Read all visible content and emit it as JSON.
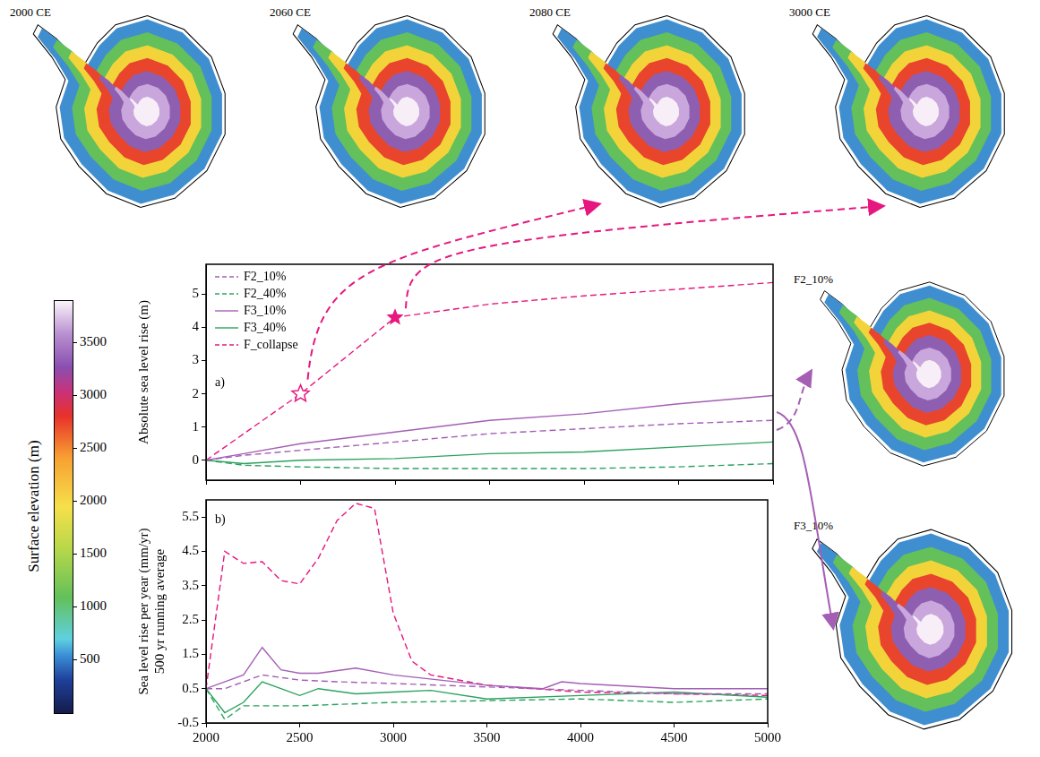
{
  "maps": [
    {
      "label": "2000 CE"
    },
    {
      "label": "2060 CE"
    },
    {
      "label": "2080 CE"
    },
    {
      "label": "3000 CE"
    },
    {
      "label": "F2_10%"
    },
    {
      "label": "F3_10%"
    }
  ],
  "colorbar": {
    "label": "Surface elevation (m)",
    "range": [
      0,
      3900
    ],
    "ticks": [
      500,
      1000,
      1500,
      2000,
      2500,
      3000,
      3500
    ]
  },
  "chart_data": [
    {
      "type": "line",
      "annotation": "a)",
      "ylabel": "Absolute sea level rise (m)",
      "xlim": [
        2000,
        5000
      ],
      "xticks": [
        2000,
        2500,
        3000,
        3500,
        4000,
        4500,
        5000
      ],
      "ylim": [
        -0.6,
        5.9
      ],
      "yticks": [
        0,
        1,
        2,
        3,
        4,
        5
      ],
      "legend": "upper left",
      "tick_labels": "y",
      "series": [
        {
          "name": "F2_10%",
          "color": "#a45fb5",
          "line_style": "dashed",
          "x": [
            2000,
            2200,
            2500,
            3000,
            3500,
            4000,
            4500,
            5000
          ],
          "values": [
            0,
            0.15,
            0.3,
            0.55,
            0.8,
            0.95,
            1.1,
            1.2
          ]
        },
        {
          "name": "F2_40%",
          "color": "#2ca25f",
          "line_style": "dashed",
          "x": [
            2000,
            2200,
            2500,
            3000,
            3500,
            4000,
            4500,
            5000
          ],
          "values": [
            0,
            -0.15,
            -0.2,
            -0.25,
            -0.25,
            -0.25,
            -0.2,
            -0.1
          ]
        },
        {
          "name": "F3_10%",
          "color": "#a45fb5",
          "line_style": "solid",
          "x": [
            2000,
            2200,
            2500,
            3000,
            3500,
            4000,
            4500,
            5000
          ],
          "values": [
            0,
            0.2,
            0.5,
            0.85,
            1.2,
            1.4,
            1.7,
            1.95
          ]
        },
        {
          "name": "F3_40%",
          "color": "#2ca25f",
          "line_style": "solid",
          "x": [
            2000,
            2200,
            2500,
            3000,
            3500,
            4000,
            4500,
            5000
          ],
          "values": [
            0,
            -0.1,
            0,
            0.05,
            0.2,
            0.25,
            0.4,
            0.55
          ]
        },
        {
          "name": "F_collapse",
          "color": "#e6177f",
          "line_style": "dashed",
          "x": [
            2000,
            2500,
            3000,
            3500,
            4000,
            4500,
            5000
          ],
          "values": [
            0,
            2.0,
            4.3,
            4.7,
            4.95,
            5.15,
            5.35
          ]
        }
      ],
      "markers": [
        {
          "x": 2500,
          "y": 2.0,
          "marker": "open_star"
        },
        {
          "x": 3000,
          "y": 4.3,
          "marker": "star"
        }
      ]
    },
    {
      "type": "line",
      "annotation": "b)",
      "ylabel": [
        "Sea level rise per year (mm/yr)",
        "500 yr running average"
      ],
      "xlim": [
        2000,
        5000
      ],
      "xticks": [
        2000,
        2500,
        3000,
        3500,
        4000,
        4500,
        5000
      ],
      "ylim": [
        -0.5,
        6.0
      ],
      "yticks": [
        -0.5,
        0.5,
        1.5,
        2.5,
        3.5,
        4.5,
        5.5
      ],
      "series": [
        {
          "name": "F2_10%",
          "color": "#a45fb5",
          "line_style": "dashed",
          "x": [
            2000,
            2100,
            2300,
            2500,
            2700,
            3000,
            3500,
            4000,
            4500,
            5000
          ],
          "values": [
            0.5,
            0.5,
            0.9,
            0.75,
            0.7,
            0.65,
            0.55,
            0.45,
            0.35,
            0.35
          ]
        },
        {
          "name": "F2_40%",
          "color": "#2ca25f",
          "line_style": "dashed",
          "x": [
            2000,
            2100,
            2200,
            2500,
            3000,
            3500,
            4000,
            4500,
            5000
          ],
          "values": [
            0.5,
            -0.4,
            0.0,
            0.0,
            0.1,
            0.15,
            0.2,
            0.1,
            0.2
          ]
        },
        {
          "name": "F3_10%",
          "color": "#a45fb5",
          "line_style": "solid",
          "x": [
            2000,
            2200,
            2300,
            2400,
            2500,
            2600,
            2800,
            3000,
            3500,
            3800,
            3900,
            4000,
            4500,
            5000
          ],
          "values": [
            0.5,
            0.9,
            1.7,
            1.05,
            0.95,
            0.95,
            1.1,
            0.9,
            0.6,
            0.5,
            0.7,
            0.65,
            0.5,
            0.5
          ]
        },
        {
          "name": "F3_40%",
          "color": "#2ca25f",
          "line_style": "solid",
          "x": [
            2000,
            2100,
            2200,
            2300,
            2400,
            2500,
            2600,
            2800,
            3000,
            3200,
            3500,
            4000,
            4500,
            5000
          ],
          "values": [
            0.5,
            -0.2,
            0.1,
            0.7,
            0.5,
            0.3,
            0.5,
            0.35,
            0.4,
            0.45,
            0.2,
            0.3,
            0.4,
            0.25
          ]
        },
        {
          "name": "F_collapse",
          "color": "#e6177f",
          "line_style": "dashed",
          "x": [
            2000,
            2100,
            2200,
            2300,
            2400,
            2500,
            2600,
            2700,
            2800,
            2900,
            3000,
            3100,
            3200,
            3500,
            4000,
            4500,
            5000
          ],
          "values": [
            0.5,
            4.5,
            4.15,
            4.2,
            3.65,
            3.55,
            4.3,
            5.4,
            5.9,
            5.75,
            2.7,
            1.3,
            0.9,
            0.6,
            0.4,
            0.35,
            0.3
          ]
        }
      ]
    }
  ]
}
